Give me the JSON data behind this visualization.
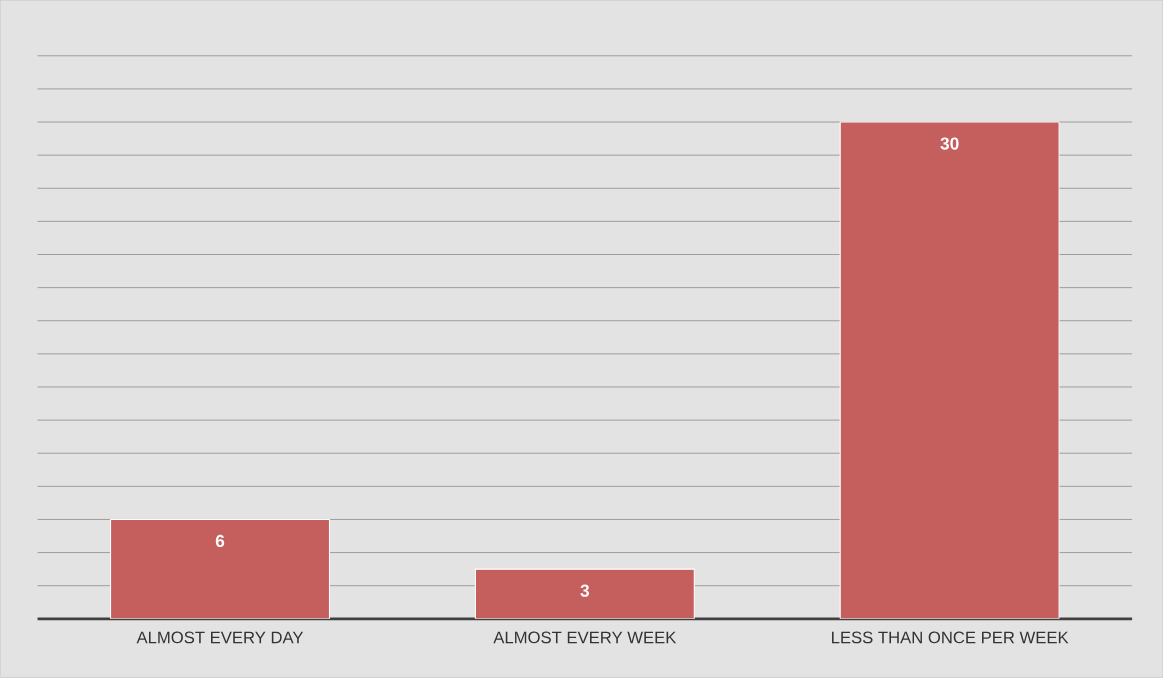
{
  "chart_data": {
    "type": "bar",
    "categories": [
      "ALMOST EVERY DAY",
      "ALMOST EVERY WEEK",
      "LESS THAN ONCE PER WEEK"
    ],
    "values": [
      6,
      3,
      30
    ],
    "color": "#c55f5d",
    "grid": "y",
    "tick_labels": "x",
    "data_labels": true
  }
}
